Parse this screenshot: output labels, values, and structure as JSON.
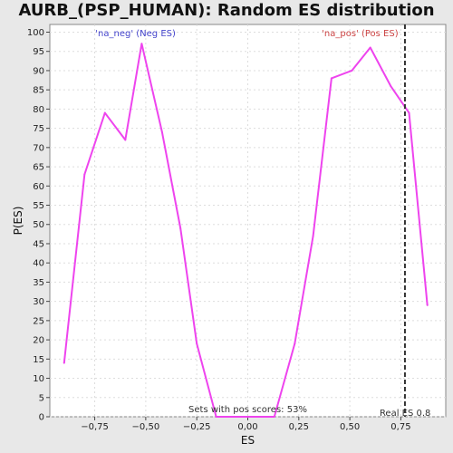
{
  "chart_data": {
    "type": "line",
    "title": "AURB_(PSP_HUMAN): Random ES distribution",
    "xlabel": "ES",
    "ylabel": "P(ES)",
    "xlim": [
      -0.97,
      0.97
    ],
    "ylim": [
      0,
      102
    ],
    "xticks": [
      -0.75,
      -0.5,
      -0.25,
      0.0,
      0.25,
      0.5,
      0.75
    ],
    "xtick_labels": [
      "−0,75",
      "−0,50",
      "−0,25",
      "0,00",
      "0,25",
      "0,50",
      "0,75"
    ],
    "yticks": [
      0,
      5,
      10,
      15,
      20,
      25,
      30,
      35,
      40,
      45,
      50,
      55,
      60,
      65,
      70,
      75,
      80,
      85,
      90,
      95,
      100
    ],
    "grid": true,
    "series": [
      {
        "name": "",
        "color": "#ee44ee",
        "x": [
          -0.9,
          -0.8,
          -0.7,
          -0.6,
          -0.52,
          -0.42,
          -0.33,
          -0.25,
          -0.155,
          -0.06,
          0.04,
          0.13,
          0.23,
          0.32,
          0.41,
          0.51,
          0.6,
          0.7,
          0.79,
          0.88
        ],
        "y": [
          14,
          63,
          79,
          72,
          97,
          74,
          49,
          19,
          0,
          0,
          0,
          0,
          19,
          47,
          88,
          90,
          96,
          86,
          79,
          29
        ]
      }
    ],
    "real_es": 0.77,
    "annotations": {
      "neg_label": "'na_neg' (Neg ES)",
      "pos_label": "'na_pos' (Pos ES)",
      "sets_text": "Sets with pos scores: 53%",
      "real_es_label": "Real ES 0.8"
    },
    "colors": {
      "neg_label": "#4444cc",
      "pos_label": "#cc4444",
      "real_es_line": "#333333",
      "plot_bg": "#ffffff",
      "grid": "#dddddd"
    }
  }
}
